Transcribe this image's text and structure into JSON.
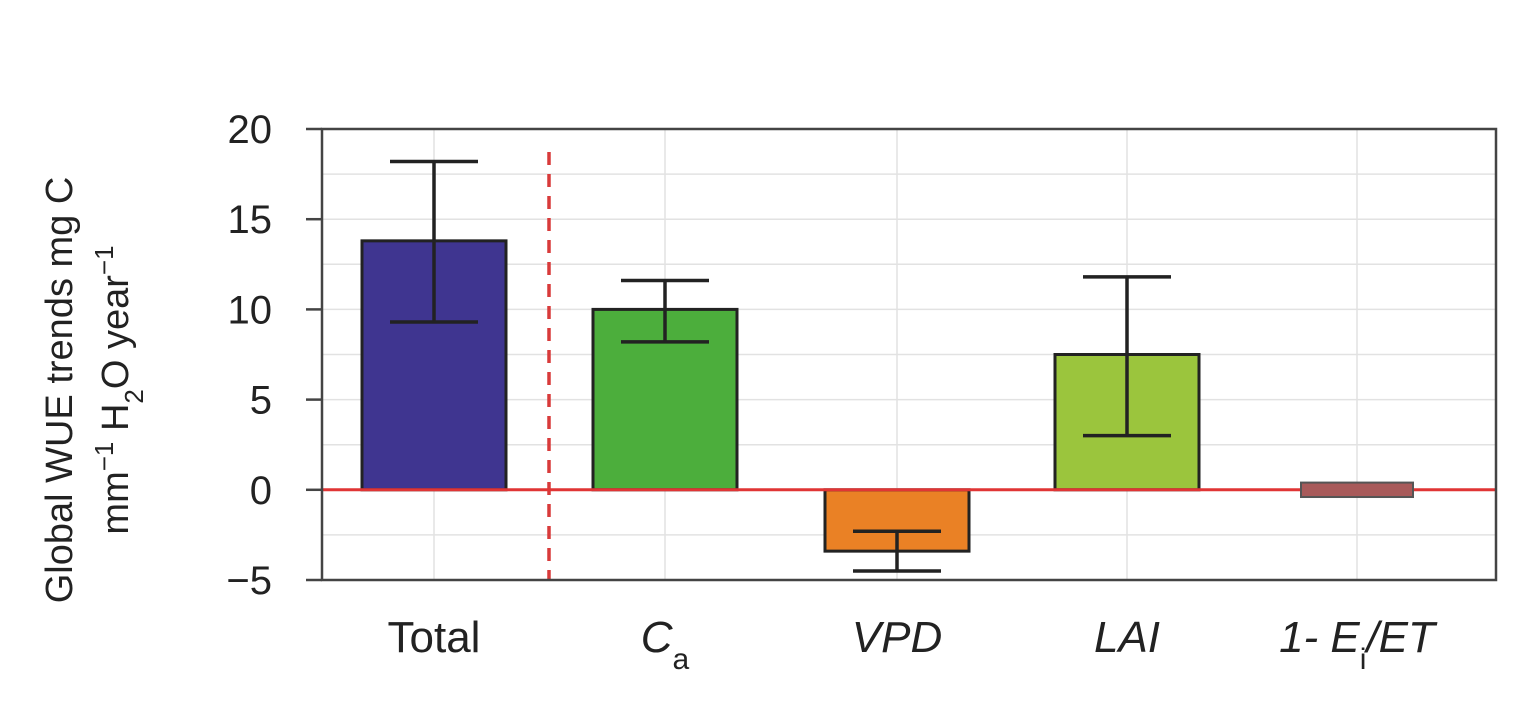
{
  "chart_data": {
    "type": "bar",
    "categories": [
      {
        "base": "Total",
        "sub": "",
        "italic": false
      },
      {
        "base": "C",
        "sub": "a",
        "italic": true
      },
      {
        "base": "VPD",
        "sub": "",
        "italic": true
      },
      {
        "base": "LAI",
        "sub": "",
        "italic": true
      },
      {
        "base": "1- E",
        "sub": "i",
        "suffix": "/ET",
        "italic": true
      }
    ],
    "values": [
      13.8,
      10.0,
      -3.4,
      7.5,
      0.0
    ],
    "error_low": [
      9.3,
      8.2,
      -4.5,
      3.0,
      -0.4
    ],
    "error_high": [
      18.2,
      11.6,
      -2.3,
      11.8,
      0.4
    ],
    "colors": [
      "#3f3590",
      "#4cae3c",
      "#ea8125",
      "#9bc53d",
      "#a85a5a"
    ],
    "ylim": [
      -5,
      20
    ],
    "yticks": [
      "20",
      "15",
      "10",
      "5",
      "0",
      "−5"
    ],
    "ytick_values": [
      20,
      15,
      10,
      5,
      0,
      -5
    ],
    "ylabel": {
      "line1": "Global WUE trends mg C",
      "line2_a": "mm",
      "line2_sup1": "−1",
      "line2_b": " H",
      "line2_sub": "2",
      "line2_c": "O year",
      "line2_sup2": "−1"
    },
    "zero_line_color": "#e03535",
    "divider_color": "#d83a3a",
    "grid": true
  }
}
